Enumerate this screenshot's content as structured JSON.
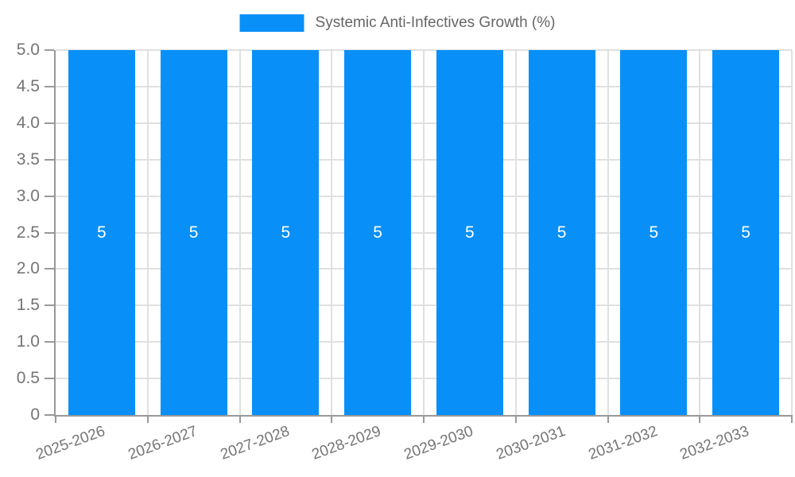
{
  "legend": {
    "label": "Systemic Anti-Infectives Growth (%)"
  },
  "chart_data": {
    "type": "bar",
    "title": "",
    "xlabel": "",
    "ylabel": "",
    "categories": [
      "2025-2026",
      "2026-2027",
      "2027-2028",
      "2028-2029",
      "2029-2030",
      "2030-2031",
      "2031-2032",
      "2032-2033"
    ],
    "series": [
      {
        "name": "Systemic Anti-Infectives Growth (%)",
        "values": [
          5,
          5,
          5,
          5,
          5,
          5,
          5,
          5
        ],
        "bar_labels": [
          "5",
          "5",
          "5",
          "5",
          "5",
          "5",
          "5",
          "5"
        ]
      }
    ],
    "ylim": [
      0,
      5
    ],
    "yticks": [
      0,
      0.5,
      1.0,
      1.5,
      2.0,
      2.5,
      3.0,
      3.5,
      4.0,
      4.5,
      5.0
    ],
    "ytick_labels": [
      "0",
      "0.5",
      "1.0",
      "1.5",
      "2.0",
      "2.5",
      "3.0",
      "3.5",
      "4.0",
      "4.5",
      "5.0"
    ],
    "grid": true,
    "legend_position": "top-center"
  },
  "colors": {
    "bar": "#0890f8",
    "grid": "#e0e0e0",
    "axis": "#999999",
    "tick_text": "#757575",
    "legend_text": "#666666",
    "bar_label_text": "#ffffff"
  }
}
